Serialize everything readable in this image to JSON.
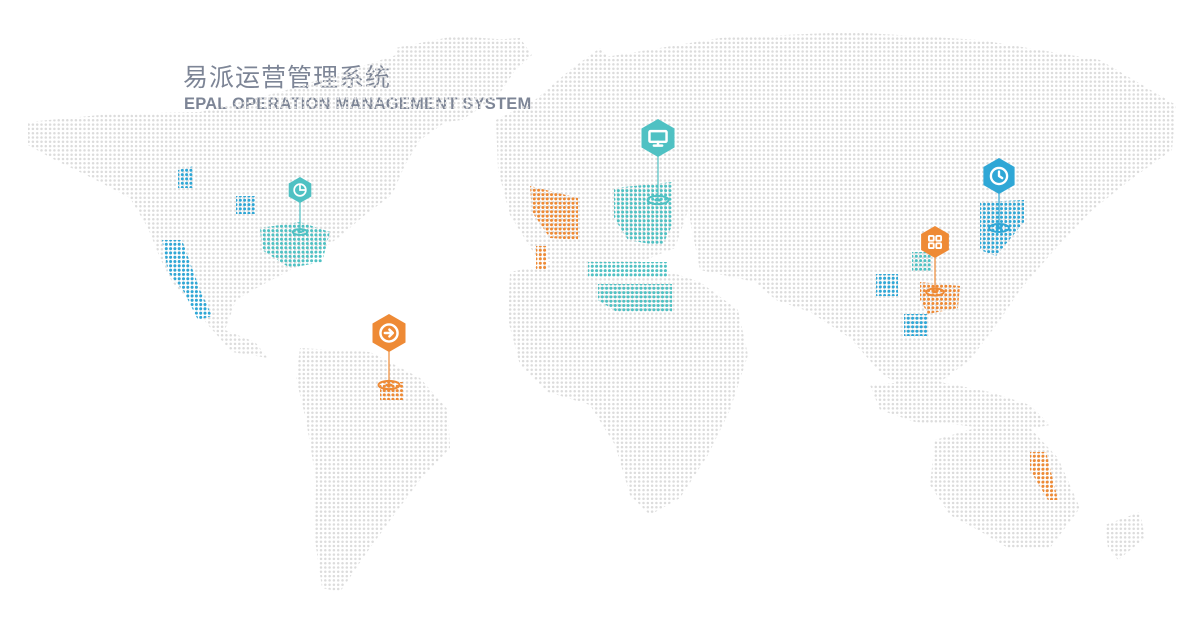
{
  "header": {
    "title_cn": "易派运营管理系统",
    "title_en": "EPAL OPERATION MANAGEMENT SYSTEM"
  },
  "colors": {
    "land_dot": "#dcdcdc",
    "teal": "#4fc1c3",
    "blue": "#2fa7d6",
    "orange": "#ee8a35",
    "title_text": "#7d8596"
  },
  "markers": [
    {
      "id": "north-america",
      "icon": "pie-chart-icon",
      "color": "#4fc1c3"
    },
    {
      "id": "south-america",
      "icon": "arrow-right-circle-icon",
      "color": "#ee8a35"
    },
    {
      "id": "europe",
      "icon": "monitor-icon",
      "color": "#4fc1c3"
    },
    {
      "id": "china",
      "icon": "grid-apps-icon",
      "color": "#ee8a35"
    },
    {
      "id": "east-asia",
      "icon": "clock-icon",
      "color": "#2fa7d6"
    }
  ]
}
